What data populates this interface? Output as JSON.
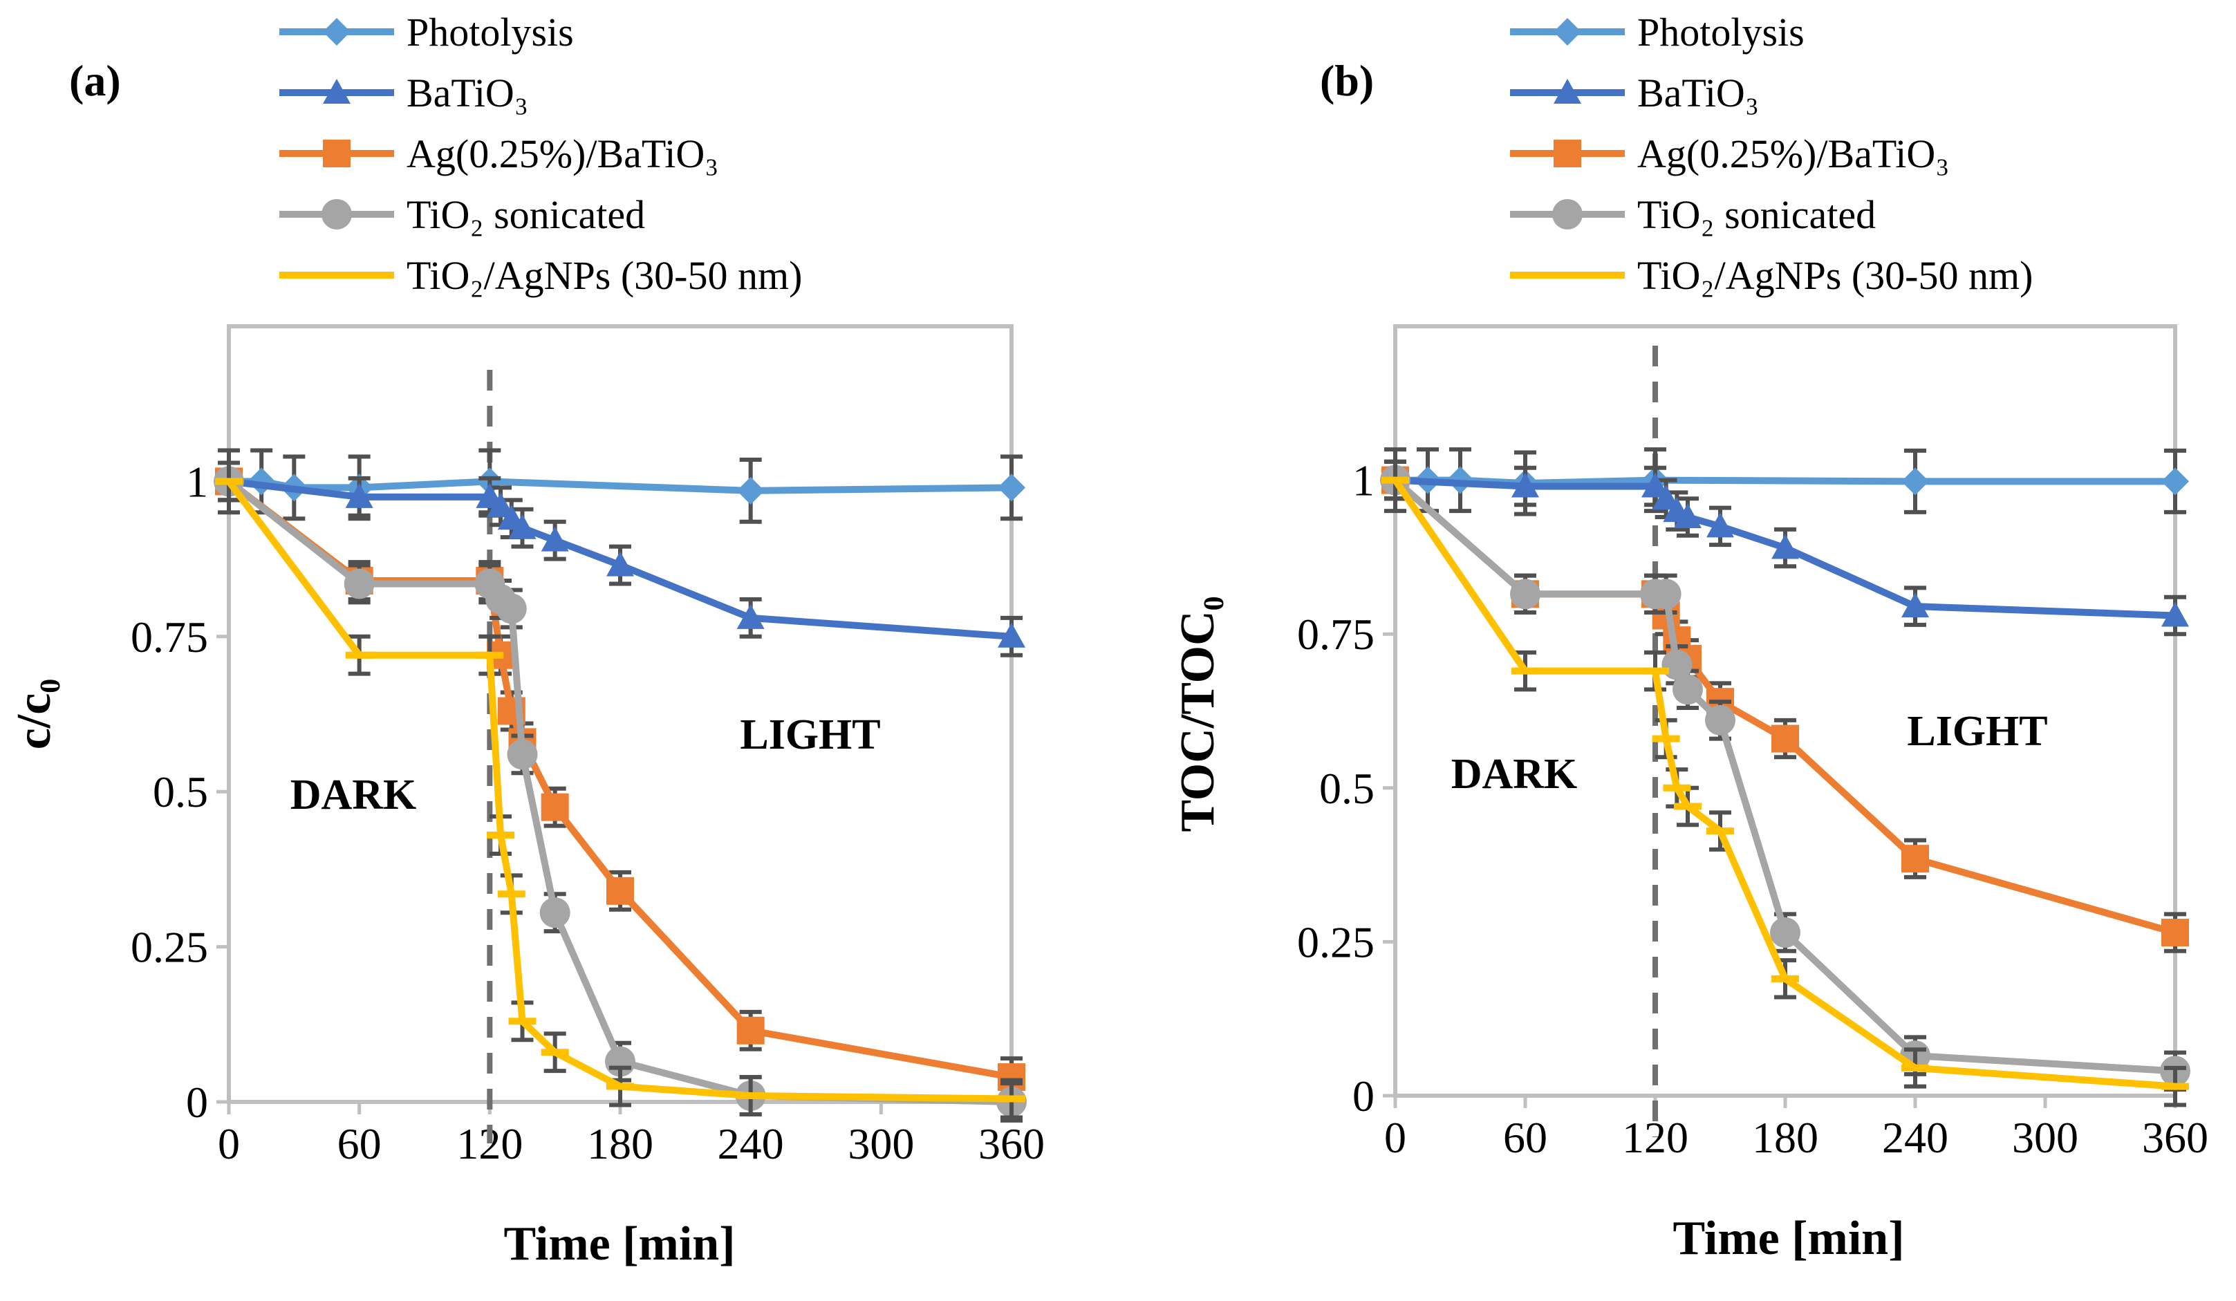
{
  "chart_data": [
    {
      "type": "line",
      "panel_label": "(a)",
      "xlabel": "Time [min]",
      "ylabel": "c/c₀",
      "xlim": [
        0,
        360
      ],
      "ylim": [
        0,
        1.25
      ],
      "xticks": [
        "0",
        "60",
        "120",
        "180",
        "240",
        "300",
        "360"
      ],
      "yticks": [
        "0",
        "0.25",
        "0.5",
        "0.75",
        "1"
      ],
      "annotations": [
        "DARK",
        "LIGHT"
      ],
      "dark_light_boundary": 120,
      "grid": false,
      "legend_position": "top",
      "series": [
        {
          "name": "Photolysis",
          "color": "#5B9BD5",
          "marker": "diamond",
          "err": 0.05,
          "x": [
            0,
            15,
            30,
            60,
            120,
            240,
            360
          ],
          "y": [
            1,
            1.0,
            0.99,
            0.99,
            1.0,
            0.985,
            0.99
          ]
        },
        {
          "name": "BaTiO₃",
          "color": "#4472C4",
          "marker": "triangle",
          "err": 0.03,
          "x": [
            0,
            60,
            120,
            125,
            130,
            135,
            150,
            180,
            240,
            360
          ],
          "y": [
            1,
            0.975,
            0.975,
            0.96,
            0.94,
            0.925,
            0.905,
            0.865,
            0.78,
            0.75
          ]
        },
        {
          "name": "Ag(0.25%)/BaTiO₃",
          "color": "#ED7D31",
          "marker": "square",
          "err": 0.03,
          "x": [
            0,
            60,
            120,
            125,
            130,
            135,
            150,
            180,
            240,
            360
          ],
          "y": [
            1,
            0.84,
            0.84,
            0.72,
            0.63,
            0.58,
            0.475,
            0.34,
            0.115,
            0.04
          ]
        },
        {
          "name": "TiO₂ sonicated",
          "color": "#A5A5A5",
          "marker": "circle",
          "err": 0.03,
          "x": [
            0,
            60,
            120,
            125,
            130,
            135,
            150,
            180,
            240,
            360
          ],
          "y": [
            1,
            0.835,
            0.835,
            0.81,
            0.795,
            0.56,
            0.305,
            0.065,
            0.01,
            0.0
          ]
        },
        {
          "name": "TiO₂/AgNPs (30-50 nm)",
          "color": "#FFC000",
          "marker": "dash",
          "err": 0.03,
          "x": [
            0,
            60,
            120,
            125,
            130,
            135,
            150,
            180,
            240,
            360
          ],
          "y": [
            1,
            0.72,
            0.72,
            0.43,
            0.335,
            0.13,
            0.08,
            0.025,
            0.01,
            0.005
          ]
        }
      ]
    },
    {
      "type": "line",
      "panel_label": "(b)",
      "xlabel": "Time [min]",
      "ylabel": "TOC/TOC₀",
      "xlim": [
        0,
        360
      ],
      "ylim": [
        0,
        1.25
      ],
      "xticks": [
        "0",
        "60",
        "120",
        "180",
        "240",
        "300",
        "360"
      ],
      "yticks": [
        "0",
        "0.25",
        "0.5",
        "0.75",
        "1"
      ],
      "annotations": [
        "DARK",
        "LIGHT"
      ],
      "dark_light_boundary": 120,
      "grid": false,
      "legend_position": "top",
      "series": [
        {
          "name": "Photolysis",
          "color": "#5B9BD5",
          "marker": "diamond",
          "err": 0.05,
          "x": [
            0,
            15,
            30,
            60,
            120,
            240,
            360
          ],
          "y": [
            1,
            1,
            1,
            0.995,
            1,
            0.998,
            0.998
          ]
        },
        {
          "name": "BaTiO₃",
          "color": "#4472C4",
          "marker": "triangle",
          "err": 0.03,
          "x": [
            0,
            60,
            120,
            125,
            130,
            135,
            150,
            180,
            240,
            360
          ],
          "y": [
            1,
            0.99,
            0.99,
            0.97,
            0.95,
            0.94,
            0.925,
            0.89,
            0.795,
            0.78
          ]
        },
        {
          "name": "Ag(0.25%)/BaTiO₃",
          "color": "#ED7D31",
          "marker": "square",
          "err": 0.03,
          "x": [
            0,
            60,
            120,
            125,
            130,
            135,
            150,
            180,
            240,
            360
          ],
          "y": [
            1,
            0.815,
            0.815,
            0.78,
            0.74,
            0.71,
            0.64,
            0.58,
            0.385,
            0.265
          ]
        },
        {
          "name": "TiO₂ sonicated",
          "color": "#A5A5A5",
          "marker": "circle",
          "err": 0.03,
          "x": [
            0,
            60,
            120,
            125,
            130,
            135,
            150,
            180,
            240,
            360
          ],
          "y": [
            1,
            0.815,
            0.815,
            0.815,
            0.7,
            0.66,
            0.61,
            0.265,
            0.065,
            0.04
          ]
        },
        {
          "name": "TiO₂/AgNPs (30-50 nm)",
          "color": "#FFC000",
          "marker": "dash",
          "err": 0.03,
          "x": [
            0,
            60,
            120,
            125,
            130,
            135,
            150,
            180,
            240,
            360
          ],
          "y": [
            1,
            0.69,
            0.69,
            0.58,
            0.5,
            0.47,
            0.43,
            0.19,
            0.045,
            0.015
          ]
        }
      ]
    }
  ]
}
